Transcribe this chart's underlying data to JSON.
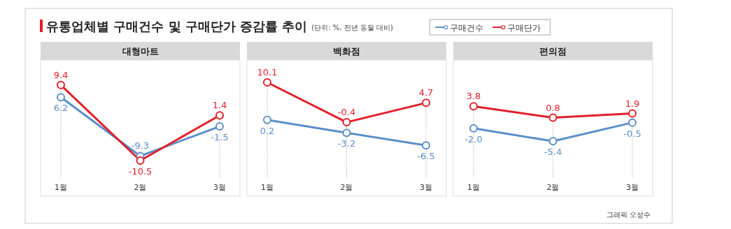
{
  "chart_data": [
    {
      "type": "other",
      "title": "유통업체별 구매건수 및 구매단가 증감률 추이",
      "subtitle": "(단위: %, 전년 동월 대비)",
      "annotations": [
        "그래픽 오성수"
      ]
    },
    {
      "type": "line",
      "title": "대형마트",
      "categories": [
        "1월",
        "2월",
        "3월"
      ],
      "marker": "circle",
      "data_labels": true,
      "legend": "top right",
      "grid": "x",
      "series": [
        {
          "name": "구매건수",
          "color": "#5b8fc9",
          "values": [
            6.2,
            -9.3,
            -1.5
          ]
        },
        {
          "name": "구매단가",
          "color": "#e2202a",
          "values": [
            9.4,
            -10.5,
            1.4
          ]
        }
      ]
    },
    {
      "type": "line",
      "title": "백화점",
      "categories": [
        "1월",
        "2월",
        "3월"
      ],
      "marker": "circle",
      "data_labels": true,
      "grid": "x",
      "series": [
        {
          "color": "#5b8fc9",
          "values": [
            0.2,
            -3.2,
            -6.5
          ]
        },
        {
          "color": "#e2202a",
          "values": [
            10.1,
            -0.4,
            4.7
          ]
        }
      ]
    },
    {
      "type": "line",
      "title": "편의점",
      "categories": [
        "1월",
        "2월",
        "3월"
      ],
      "marker": "circle",
      "data_labels": true,
      "grid": "x",
      "series": [
        {
          "color": "#5b8fc9",
          "values": [
            -2.0,
            -5.4,
            -0.5
          ],
          "value_labels": [
            "-2.0",
            "-5.4",
            "-0.5"
          ]
        },
        {
          "color": "#e2202a",
          "values": [
            3.8,
            0.8,
            1.9
          ]
        }
      ]
    }
  ]
}
